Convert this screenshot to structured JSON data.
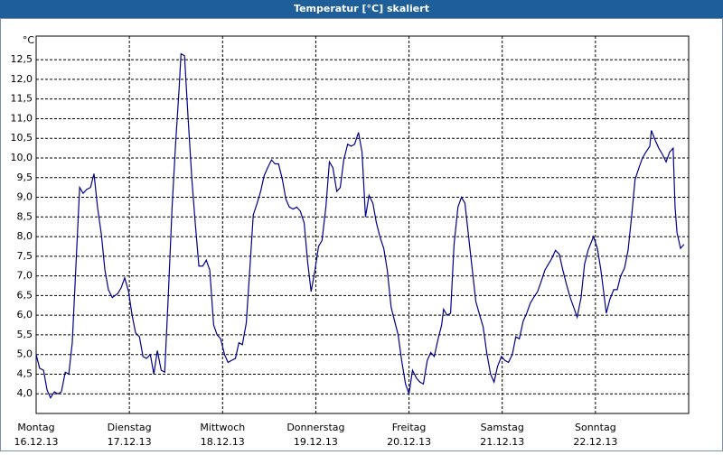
{
  "chart_data": {
    "type": "line",
    "title": "Temperatur [°C] skaliert",
    "y_unit": "°C",
    "xlim": [
      0,
      168
    ],
    "ylim": [
      3.5,
      13.1
    ],
    "xticks": [
      {
        "value": 0,
        "label": "Montag"
      },
      {
        "value": 24,
        "label": "Dienstag"
      },
      {
        "value": 48,
        "label": "Mittwoch"
      },
      {
        "value": 72,
        "label": "Donnerstag"
      },
      {
        "value": 96,
        "label": "Freitag"
      },
      {
        "value": 120,
        "label": "Samstag"
      },
      {
        "value": 144,
        "label": "Sonntag"
      }
    ],
    "xtick_dates": [
      "16.12.13",
      "17.12.13",
      "18.12.13",
      "19.12.13",
      "20.12.13",
      "21.12.13",
      "22.12.13"
    ],
    "yticks": [
      {
        "value": 4,
        "label": "4,0"
      },
      {
        "value": 4.5,
        "label": "4,5"
      },
      {
        "value": 5,
        "label": "5,0"
      },
      {
        "value": 5.5,
        "label": "5,5"
      },
      {
        "value": 6,
        "label": "6,0"
      },
      {
        "value": 6.5,
        "label": "6,5"
      },
      {
        "value": 7,
        "label": "7,0"
      },
      {
        "value": 7.5,
        "label": "7,5"
      },
      {
        "value": 8,
        "label": "8,0"
      },
      {
        "value": 8.5,
        "label": "8,5"
      },
      {
        "value": 9,
        "label": "9,0"
      },
      {
        "value": 9.5,
        "label": "9,5"
      },
      {
        "value": 10,
        "label": "10,0"
      },
      {
        "value": 10.5,
        "label": "10,5"
      },
      {
        "value": 11,
        "label": "11,0"
      },
      {
        "value": 11.5,
        "label": "11,5"
      },
      {
        "value": 12,
        "label": "12,0"
      },
      {
        "value": 12.5,
        "label": "12,5"
      }
    ],
    "grid": true,
    "color": "#00008b",
    "x": [
      0,
      0.9,
      1.9,
      2.8,
      3.7,
      4.7,
      5.6,
      6.5,
      7.5,
      8.4,
      9.3,
      11.2,
      12.1,
      13.0,
      14.0,
      14.9,
      15.8,
      16.8,
      17.7,
      18.6,
      19.6,
      21.0,
      21.9,
      22.8,
      23.8,
      24.7,
      25.6,
      26.6,
      27.5,
      28.4,
      29.4,
      30.3,
      31.2,
      32.2,
      33.1,
      34.0,
      35.0,
      35.9,
      36.8,
      37.3,
      38.2,
      39.1,
      40.1,
      41.0,
      41.9,
      42.9,
      43.8,
      44.7,
      45.7,
      46.6,
      47.5,
      48.5,
      49.4,
      50.3,
      51.3,
      52.2,
      53.1,
      54.1,
      55.0,
      55.9,
      56.9,
      57.8,
      58.7,
      59.6,
      60.6,
      61.5,
      62.4,
      63.4,
      64.3,
      65.2,
      66.2,
      67.1,
      68.0,
      69.0,
      69.9,
      70.8,
      71.8,
      72.7,
      73.6,
      74.6,
      75.5,
      76.4,
      77.4,
      78.3,
      79.2,
      80.2,
      81.1,
      82.0,
      83.0,
      83.9,
      84.8,
      85.7,
      86.7,
      87.6,
      88.5,
      89.5,
      90.4,
      91.4,
      92.3,
      93.2,
      94.1,
      95.1,
      96.0,
      96.9,
      97.9,
      98.8,
      99.7,
      100.7,
      101.6,
      102.5,
      103.5,
      104.4,
      104.9,
      105.8,
      106.7,
      107.6,
      108.6,
      109.5,
      110.4,
      111.4,
      112.3,
      113.2,
      114.2,
      115.1,
      116.0,
      117.0,
      117.9,
      118.8,
      119.8,
      120.7,
      121.6,
      122.6,
      123.5,
      124.4,
      125.4,
      126.3,
      127.2,
      128.1,
      129.1,
      130.0,
      131.0,
      131.9,
      132.8,
      133.7,
      134.7,
      135.6,
      136.5,
      137.5,
      138.4,
      139.3,
      140.3,
      141.2,
      142.1,
      143.5,
      144.5,
      145.4,
      146.8,
      147.7,
      148.7,
      149.6,
      150.5,
      151.5,
      152.4,
      153.3,
      154.2,
      155.2,
      156.1,
      157.0,
      158.0,
      158.4,
      159.4,
      160.3,
      161.2,
      162.2,
      163.1,
      164.0,
      164.5,
      165.0,
      165.9,
      166.8
    ],
    "values": [
      5.0,
      4.65,
      4.6,
      4.1,
      3.9,
      4.05,
      4.0,
      4.05,
      4.55,
      4.5,
      5.3,
      9.25,
      9.1,
      9.2,
      9.25,
      9.6,
      8.75,
      8.05,
      7.15,
      6.65,
      6.45,
      6.55,
      6.7,
      6.95,
      6.6,
      6.0,
      5.55,
      5.45,
      4.95,
      4.9,
      5.0,
      4.5,
      5.1,
      4.6,
      4.55,
      6.45,
      8.75,
      10.35,
      11.75,
      12.65,
      12.6,
      11.05,
      9.45,
      8.3,
      7.25,
      7.25,
      7.4,
      7.15,
      5.75,
      5.5,
      5.4,
      5.0,
      4.8,
      4.85,
      4.9,
      5.3,
      5.25,
      5.8,
      7.15,
      8.55,
      8.85,
      9.15,
      9.55,
      9.75,
      9.95,
      9.85,
      9.85,
      9.45,
      8.95,
      8.75,
      8.7,
      8.75,
      8.65,
      8.35,
      7.35,
      6.6,
      7.15,
      7.75,
      7.9,
      8.75,
      9.9,
      9.75,
      9.15,
      9.25,
      9.95,
      10.35,
      10.3,
      10.35,
      10.65,
      10.15,
      8.5,
      9.05,
      8.85,
      8.35,
      8.0,
      7.7,
      7.15,
      6.2,
      5.85,
      5.5,
      4.85,
      4.25,
      4.0,
      4.6,
      4.4,
      4.3,
      4.25,
      4.85,
      5.05,
      4.95,
      5.4,
      5.75,
      6.15,
      6.0,
      6.05,
      7.8,
      8.75,
      9.0,
      8.85,
      7.95,
      7.15,
      6.35,
      6.0,
      5.7,
      5.05,
      4.5,
      4.3,
      4.7,
      4.95,
      4.85,
      4.8,
      5.0,
      5.45,
      5.4,
      5.85,
      6.05,
      6.3,
      6.45,
      6.6,
      6.85,
      7.15,
      7.3,
      7.45,
      7.65,
      7.55,
      7.15,
      6.8,
      6.45,
      6.2,
      5.95,
      6.45,
      7.3,
      7.65,
      8.0,
      7.7,
      7.15,
      6.05,
      6.4,
      6.65,
      6.65,
      7.0,
      7.2,
      7.65,
      8.5,
      9.45,
      9.75,
      10.0,
      10.15,
      10.3,
      10.7,
      10.45,
      10.25,
      10.1,
      9.9,
      10.15,
      10.25,
      8.75,
      8.1,
      7.7,
      7.8
    ]
  }
}
